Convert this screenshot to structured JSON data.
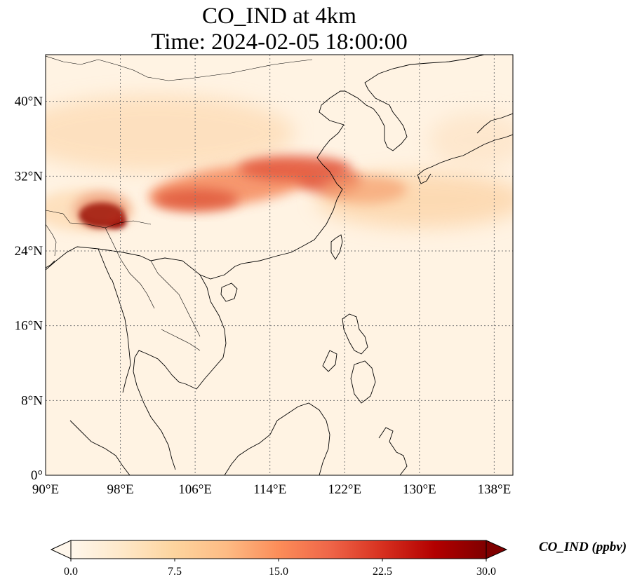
{
  "title": {
    "line1": "CO_IND at 4km",
    "line2": "Time: 2024-02-05 18:00:00"
  },
  "map": {
    "lon_range": [
      90,
      140
    ],
    "lat_range": [
      0,
      45
    ],
    "lon_ticks": [
      {
        "value": 90,
        "label": "90°E"
      },
      {
        "value": 98,
        "label": "98°E"
      },
      {
        "value": 106,
        "label": "106°E"
      },
      {
        "value": 114,
        "label": "114°E"
      },
      {
        "value": 122,
        "label": "122°E"
      },
      {
        "value": 130,
        "label": "130°E"
      },
      {
        "value": 138,
        "label": "138°E"
      }
    ],
    "lat_ticks": [
      {
        "value": 0,
        "label": "0°"
      },
      {
        "value": 8,
        "label": "8°N"
      },
      {
        "value": 16,
        "label": "16°N"
      },
      {
        "value": 24,
        "label": "24°N"
      },
      {
        "value": 32,
        "label": "32°N"
      },
      {
        "value": 40,
        "label": "40°N"
      }
    ],
    "gridlines": true
  },
  "colorbar": {
    "label": "CO_IND (ppbv)",
    "min": 0,
    "max": 30,
    "ticks": [
      {
        "value": 0,
        "label": "0.0"
      },
      {
        "value": 7.5,
        "label": "7.5"
      },
      {
        "value": 15,
        "label": "15.0"
      },
      {
        "value": 22.5,
        "label": "22.5"
      },
      {
        "value": 30,
        "label": "30.0"
      }
    ],
    "colormap_stops": [
      "#fff7ec",
      "#fee8c8",
      "#fdd49e",
      "#fdbb84",
      "#fc8d59",
      "#ef6548",
      "#d7301f",
      "#b30000",
      "#7f0000"
    ],
    "extend": "both"
  }
}
